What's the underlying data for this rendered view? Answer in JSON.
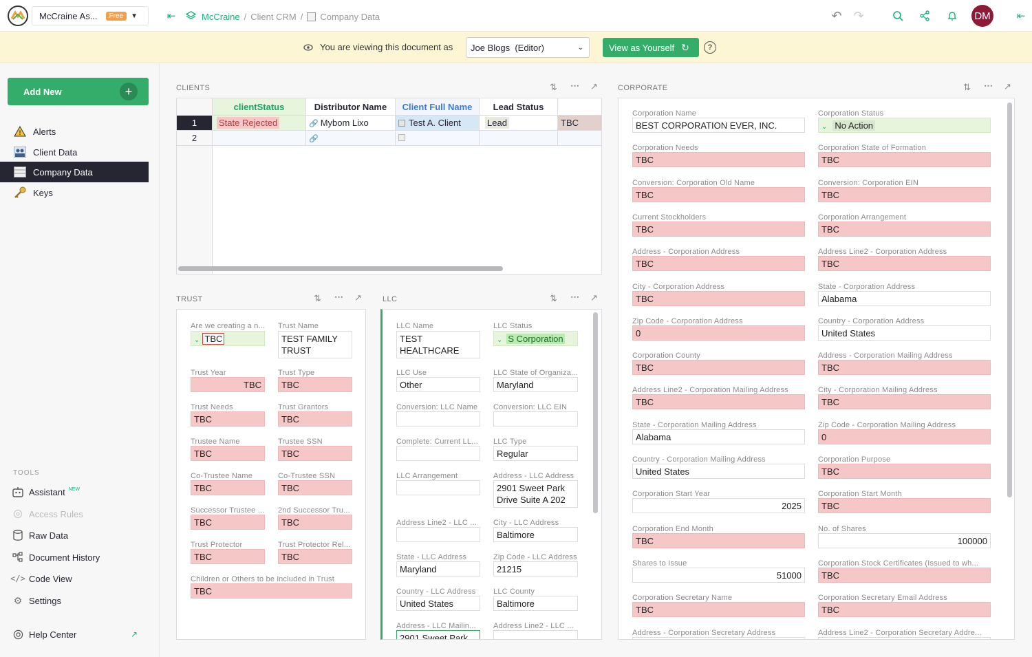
{
  "header": {
    "app_name": "McCraine As...",
    "plan_badge": "Free",
    "breadcrumb": {
      "root": "McCraine",
      "crm": "Client CRM",
      "page": "Company Data"
    },
    "avatar_initials": "DM"
  },
  "banner": {
    "text": "You are viewing this document as",
    "viewer": "Joe Blogs  (Editor)",
    "view_as_button": "View as Yourself"
  },
  "sidebar": {
    "add_new": "Add New",
    "pages": [
      {
        "label": "Alerts",
        "icon": "warning-icon"
      },
      {
        "label": "Client Data",
        "icon": "users-icon"
      },
      {
        "label": "Company Data",
        "icon": "table-icon"
      },
      {
        "label": "Keys",
        "icon": "key-icon"
      }
    ],
    "tools_title": "TOOLS",
    "tools": [
      {
        "label": "Assistant",
        "badge": "NEW"
      },
      {
        "label": "Access Rules"
      },
      {
        "label": "Raw Data"
      },
      {
        "label": "Document History"
      },
      {
        "label": "Code View"
      },
      {
        "label": "Settings"
      }
    ],
    "help": "Help Center"
  },
  "clients": {
    "title": "CLIENTS",
    "columns": [
      "clientStatus",
      "Distributor Name",
      "Client Full Name",
      "Lead Status"
    ],
    "rows": [
      {
        "num": "1",
        "clientStatus": "State Rejected",
        "distributor": "Mybom Lixo",
        "client": "Test A. Client",
        "lead": "Lead",
        "extra": "TBC"
      },
      {
        "num": "2",
        "clientStatus": "",
        "distributor": "",
        "client": "",
        "lead": "",
        "extra": ""
      }
    ]
  },
  "trust": {
    "title": "TRUST",
    "fields": [
      {
        "label": "Are we creating a n...",
        "value": "TBC"
      },
      {
        "label": "Trust Name",
        "value": "TEST FAMILY TRUST"
      },
      {
        "label": "Trust Year",
        "value": "TBC"
      },
      {
        "label": "Trust Type",
        "value": "TBC"
      },
      {
        "label": "Trust Needs",
        "value": "TBC"
      },
      {
        "label": "Trust Grantors",
        "value": "TBC"
      },
      {
        "label": "Trustee Name",
        "value": "TBC"
      },
      {
        "label": "Trustee SSN",
        "value": "TBC"
      },
      {
        "label": "Co-Trustee Name",
        "value": "TBC"
      },
      {
        "label": "Co-Trustee SSN",
        "value": "TBC"
      },
      {
        "label": "Successor Trustee ...",
        "value": "TBC"
      },
      {
        "label": "2nd Successor Tru...",
        "value": "TBC"
      },
      {
        "label": "Trust Protector",
        "value": "TBC"
      },
      {
        "label": "Trust Protector Rel...",
        "value": "TBC"
      },
      {
        "label": "Children or Others to be included in Trust",
        "value": "TBC"
      }
    ]
  },
  "llc": {
    "title": "LLC",
    "fields": [
      {
        "label": "LLC Name",
        "value": "TEST HEALTHCARE LLC"
      },
      {
        "label": "LLC Status",
        "value": "S Corporation"
      },
      {
        "label": "LLC Use",
        "value": "Other"
      },
      {
        "label": "LLC State of Organiza...",
        "value": "Maryland"
      },
      {
        "label": "Conversion: LLC Name",
        "value": ""
      },
      {
        "label": "Conversion: LLC EIN",
        "value": ""
      },
      {
        "label": "Complete: Current LL...",
        "value": ""
      },
      {
        "label": "LLC Type",
        "value": "Regular"
      },
      {
        "label": "LLC Arrangement",
        "value": ""
      },
      {
        "label": "Address - LLC Address",
        "value": "2901 Sweet Park Drive Suite A 202"
      },
      {
        "label": "Address Line2 - LLC ...",
        "value": ""
      },
      {
        "label": "City - LLC Address",
        "value": "Baltimore"
      },
      {
        "label": "State - LLC Address",
        "value": "Maryland"
      },
      {
        "label": "Zip Code - LLC Address",
        "value": "21215"
      },
      {
        "label": "Country - LLC Address",
        "value": "United States"
      },
      {
        "label": "LLC County",
        "value": "Baltimore"
      },
      {
        "label": "Address - LLC Mailin...",
        "value": "2901 Sweet Park"
      },
      {
        "label": "Address Line2 - LLC ...",
        "value": ""
      }
    ]
  },
  "corporate": {
    "title": "CORPORATE",
    "fields": [
      {
        "label": "Corporation Name",
        "value": "BEST CORPORATION EVER, INC."
      },
      {
        "label": "Corporation Status",
        "value": "No Action"
      },
      {
        "label": "Corporation Needs",
        "value": "TBC"
      },
      {
        "label": "Corporation State of Formation",
        "value": "TBC"
      },
      {
        "label": "Conversion: Corporation Old Name",
        "value": "TBC"
      },
      {
        "label": "Conversion: Corporation EIN",
        "value": "TBC"
      },
      {
        "label": "Current Stockholders",
        "value": "TBC"
      },
      {
        "label": "Corporation Arrangement",
        "value": "TBC"
      },
      {
        "label": "Address - Corporation Address",
        "value": "TBC"
      },
      {
        "label": "Address Line2 - Corporation Address",
        "value": "TBC"
      },
      {
        "label": "City - Corporation Address",
        "value": "TBC"
      },
      {
        "label": "State - Corporation Address",
        "value": "Alabama"
      },
      {
        "label": "Zip Code - Corporation Address",
        "value": "0"
      },
      {
        "label": "Country - Corporation Address",
        "value": "United States"
      },
      {
        "label": "Corporation County",
        "value": "TBC"
      },
      {
        "label": "Address - Corporation Mailing Address",
        "value": "TBC"
      },
      {
        "label": "Address Line2 - Corporation Mailing Address",
        "value": "TBC"
      },
      {
        "label": "City - Corporation Mailing Address",
        "value": "TBC"
      },
      {
        "label": "State - Corporation Mailing Address",
        "value": "Alabama"
      },
      {
        "label": "Zip Code - Corporation Mailing Address",
        "value": "0"
      },
      {
        "label": "Country - Corporation Mailing Address",
        "value": "United States"
      },
      {
        "label": "Corporation Purpose",
        "value": "TBC"
      },
      {
        "label": "Corporation Start Year",
        "value": "2025"
      },
      {
        "label": "Corporation Start Month",
        "value": "TBC"
      },
      {
        "label": "Corporation End Month",
        "value": "TBC"
      },
      {
        "label": "No. of Shares",
        "value": "100000"
      },
      {
        "label": "Shares to Issue",
        "value": "51000"
      },
      {
        "label": "Corporation Stock Certificates (Issued to wh...",
        "value": "TBC"
      },
      {
        "label": "Corporation Secretary Name",
        "value": "TBC"
      },
      {
        "label": "Corporation Secretary Email Address",
        "value": "TBC"
      },
      {
        "label": "Address - Corporation Secretary Address",
        "value": ""
      },
      {
        "label": "Address Line2 - Corporation Secretary Addre...",
        "value": ""
      }
    ]
  }
}
